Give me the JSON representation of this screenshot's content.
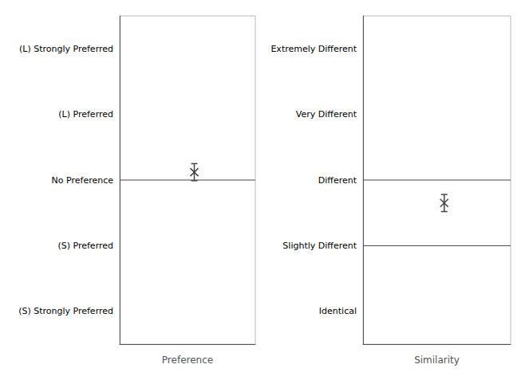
{
  "chart_data": [
    {
      "type": "scatter",
      "xlabel": "Preference",
      "x": [
        0.55
      ],
      "values": [
        2.12
      ],
      "errors": [
        0.13
      ],
      "hlines": [
        2
      ],
      "xlim": [
        0,
        1
      ],
      "xticks": [],
      "ylim": [
        -0.5,
        4.5
      ],
      "yticks": [
        {
          "value": 0,
          "label": "(S) Strongly Preferred"
        },
        {
          "value": 1,
          "label": "(S) Preferred"
        },
        {
          "value": 2,
          "label": "No Preference"
        },
        {
          "value": 3,
          "label": "(L) Preferred"
        },
        {
          "value": 4,
          "label": "(L) Strongly Preferred"
        }
      ],
      "tick_labels": "y",
      "marker": "x",
      "color": "#444444",
      "grid": false
    },
    {
      "type": "scatter",
      "xlabel": "Similarity",
      "x": [
        0.55
      ],
      "values": [
        1.65
      ],
      "errors": [
        0.13
      ],
      "hlines": [
        1,
        2
      ],
      "xlim": [
        0,
        1
      ],
      "xticks": [],
      "ylim": [
        -0.5,
        4.5
      ],
      "yticks": [
        {
          "value": 0,
          "label": "Identical"
        },
        {
          "value": 1,
          "label": "Slightly Different"
        },
        {
          "value": 2,
          "label": "Different"
        },
        {
          "value": 3,
          "label": "Very Different"
        },
        {
          "value": 4,
          "label": "Extremely Different"
        }
      ],
      "tick_labels": "y",
      "marker": "x",
      "color": "#444444",
      "grid": false
    }
  ]
}
